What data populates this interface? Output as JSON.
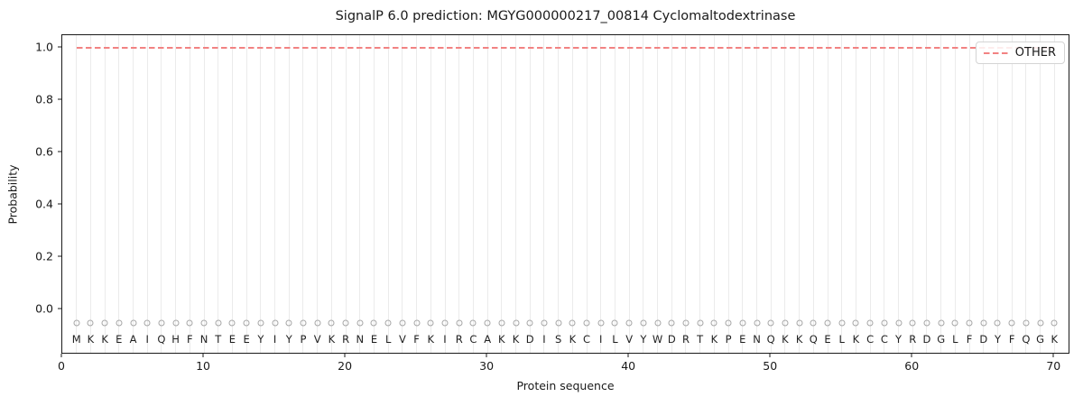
{
  "title": "SignalP 6.0 prediction: MGYG000000217_00814 Cyclomaltodextrinase",
  "chart_data": {
    "type": "line",
    "title": "SignalP 6.0 prediction: MGYG000000217_00814 Cyclomaltodextrinase",
    "xlabel": "Protein sequence",
    "ylabel": "Probability",
    "xlim": [
      0,
      71
    ],
    "ylim": [
      -0.164,
      1.048
    ],
    "x_ticks": [
      0,
      10,
      20,
      30,
      40,
      50,
      60,
      70
    ],
    "x_tick_labels": [
      "0",
      "10",
      "20",
      "30",
      "40",
      "50",
      "60",
      "70"
    ],
    "y_ticks": [
      0.0,
      0.2,
      0.4,
      0.6,
      0.8,
      1.0
    ],
    "y_tick_labels": [
      "0.0",
      "0.2",
      "0.4",
      "0.6",
      "0.8",
      "1.0"
    ],
    "grid": "vertical-per-residue",
    "legend": {
      "position": "upper-right",
      "entries": [
        {
          "label": "OTHER",
          "color": "#f28282",
          "style": "dashed"
        }
      ]
    },
    "series": [
      {
        "name": "OTHER",
        "style": "dashed",
        "color": "#f28282",
        "y_constant": 1.0,
        "x_range": [
          1,
          70
        ]
      }
    ],
    "sequence": "MKKEAIQHFNTEEYIYPVKRNELVFKIRCAKKDISKCILVYWDRTKPENQKKQELKCCYRDGLFDYFQGK",
    "marker_row": {
      "symbol": "circle-outline",
      "y": -0.05,
      "color": "#a6a6a6"
    }
  },
  "colors": {
    "other_line": "#f28282",
    "grid": "#ebebeb",
    "marker_circle": "#a6a6a6",
    "spine": "#1a1a1a",
    "text": "#1a1a1a",
    "background": "#ffffff"
  }
}
